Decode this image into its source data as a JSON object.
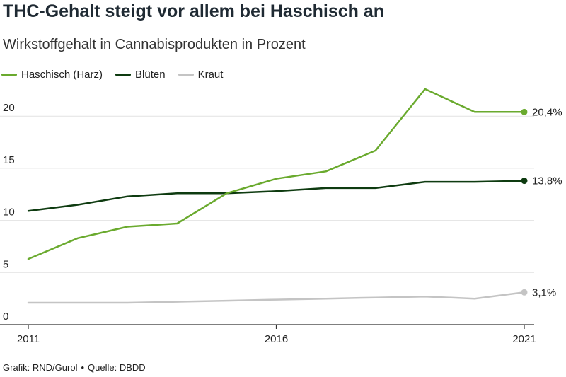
{
  "header": {
    "title": "THC-Gehalt steigt vor allem bei Haschisch an",
    "subtitle": "Wirkstoffgehalt in Cannabisprodukten in Prozent"
  },
  "footer": {
    "credit": "Grafik: RND/Gurol",
    "separator": "•",
    "source": "Quelle: DBDD"
  },
  "chart_data": {
    "type": "line",
    "title": "THC-Gehalt steigt vor allem bei Haschisch an",
    "subtitle": "Wirkstoffgehalt in Cannabisprodukten in Prozent",
    "xlabel": "",
    "ylabel": "",
    "x": [
      2011,
      2012,
      2013,
      2014,
      2015,
      2016,
      2017,
      2018,
      2019,
      2020,
      2021
    ],
    "xticks": [
      2011,
      2016,
      2021
    ],
    "xlim": [
      2011,
      2021
    ],
    "yticks": [
      0,
      5,
      10,
      15,
      20
    ],
    "ylim": [
      0,
      23
    ],
    "grid": "horizontal",
    "legend_position": "top-left",
    "series": [
      {
        "name": "Haschisch (Harz)",
        "color": "#6aaa2e",
        "values": [
          6.3,
          8.3,
          9.4,
          9.7,
          12.6,
          14.0,
          14.7,
          16.7,
          22.6,
          20.4,
          20.4
        ],
        "end_label": "20,4%"
      },
      {
        "name": "Blüten",
        "color": "#0e3b10",
        "values": [
          10.9,
          11.5,
          12.3,
          12.6,
          12.6,
          12.8,
          13.1,
          13.1,
          13.7,
          13.7,
          13.8
        ],
        "end_label": "13,8%"
      },
      {
        "name": "Kraut",
        "color": "#c4c4c4",
        "values": [
          2.1,
          2.1,
          2.1,
          2.2,
          2.3,
          2.4,
          2.5,
          2.6,
          2.7,
          2.5,
          3.1
        ],
        "end_label": "3,1%"
      }
    ]
  }
}
